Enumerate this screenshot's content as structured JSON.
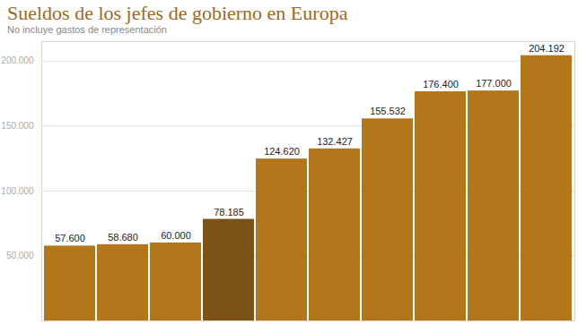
{
  "chart_data": {
    "type": "bar",
    "title": "Sueldos de los jefes de gobierno en Europa",
    "subtitle": "No incluye gastos de representación",
    "categories": [
      null,
      null,
      null,
      null,
      null,
      null,
      null,
      null,
      null,
      null
    ],
    "values": [
      57600,
      58680,
      60000,
      78185,
      124620,
      132427,
      155532,
      176400,
      177000,
      204192
    ],
    "value_labels": [
      "57.600",
      "58.680",
      "60.000",
      "78.185",
      "124.620",
      "132.427",
      "155.532",
      "176.400",
      "177.000",
      "204.192"
    ],
    "colors": [
      "#b3761a",
      "#b3761a",
      "#b3761a",
      "#7b5316",
      "#b3761a",
      "#b3761a",
      "#b3761a",
      "#b3761a",
      "#b3761a",
      "#b3761a"
    ],
    "ylim": [
      0,
      215000
    ],
    "yticks": [
      {
        "value": 50000,
        "label": "50.000"
      },
      {
        "value": 100000,
        "label": "100.000"
      },
      {
        "value": 150000,
        "label": "150.000"
      },
      {
        "value": 200000,
        "label": "200.000"
      }
    ],
    "grid": true,
    "data_labels": true
  }
}
